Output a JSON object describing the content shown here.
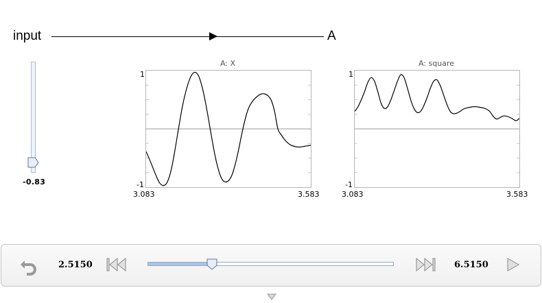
{
  "network": {
    "input_node": "input",
    "output_node": "A"
  },
  "slider": {
    "value": "-0.83",
    "level_fraction": 0.085
  },
  "plots": [
    {
      "title": "A: X",
      "ymax_label": "1",
      "ymin_label": "-1",
      "xmin_label": "3.083",
      "xmax_label": "3.583",
      "series": {
        "x": [
          3.083,
          3.093,
          3.103,
          3.113,
          3.123,
          3.133,
          3.143,
          3.153,
          3.163,
          3.173,
          3.183,
          3.193,
          3.203,
          3.213,
          3.223,
          3.233,
          3.243,
          3.253,
          3.263,
          3.273,
          3.283,
          3.293,
          3.303,
          3.313,
          3.323,
          3.333,
          3.343,
          3.353,
          3.363,
          3.373,
          3.383,
          3.393,
          3.403,
          3.413,
          3.423,
          3.433,
          3.443,
          3.453,
          3.463,
          3.473,
          3.483,
          3.493,
          3.503,
          3.513,
          3.523,
          3.533,
          3.543,
          3.553,
          3.563,
          3.573,
          3.583
        ],
        "y": [
          -0.39,
          -0.52,
          -0.66,
          -0.8,
          -0.92,
          -0.97,
          -0.95,
          -0.83,
          -0.6,
          -0.28,
          0.06,
          0.38,
          0.63,
          0.82,
          0.94,
          0.97,
          0.9,
          0.72,
          0.46,
          0.15,
          -0.18,
          -0.48,
          -0.71,
          -0.86,
          -0.91,
          -0.89,
          -0.8,
          -0.62,
          -0.38,
          -0.1,
          0.15,
          0.34,
          0.45,
          0.52,
          0.57,
          0.6,
          0.6,
          0.57,
          0.49,
          0.3,
          0.0,
          -0.1,
          -0.18,
          -0.24,
          -0.28,
          -0.3,
          -0.31,
          -0.31,
          -0.3,
          -0.29,
          -0.28
        ]
      }
    },
    {
      "title": "A: square",
      "ymax_label": "1",
      "ymin_label": "-1",
      "xmin_label": "3.083",
      "xmax_label": "3.583",
      "series": {
        "x": [
          3.083,
          3.093,
          3.103,
          3.113,
          3.123,
          3.133,
          3.143,
          3.153,
          3.163,
          3.173,
          3.183,
          3.193,
          3.203,
          3.213,
          3.223,
          3.233,
          3.243,
          3.253,
          3.263,
          3.273,
          3.283,
          3.293,
          3.303,
          3.313,
          3.323,
          3.333,
          3.343,
          3.353,
          3.363,
          3.373,
          3.383,
          3.393,
          3.403,
          3.413,
          3.423,
          3.433,
          3.443,
          3.453,
          3.463,
          3.473,
          3.483,
          3.493,
          3.503,
          3.513,
          3.523,
          3.533,
          3.543,
          3.553,
          3.563,
          3.573,
          3.583
        ],
        "y": [
          0.3,
          0.38,
          0.5,
          0.64,
          0.8,
          0.88,
          0.82,
          0.64,
          0.44,
          0.35,
          0.38,
          0.5,
          0.66,
          0.82,
          0.93,
          0.88,
          0.7,
          0.5,
          0.35,
          0.28,
          0.3,
          0.4,
          0.54,
          0.7,
          0.82,
          0.84,
          0.74,
          0.58,
          0.42,
          0.3,
          0.26,
          0.27,
          0.3,
          0.34,
          0.36,
          0.37,
          0.38,
          0.38,
          0.37,
          0.36,
          0.34,
          0.3,
          0.22,
          0.17,
          0.19,
          0.22,
          0.22,
          0.2,
          0.17,
          0.14,
          0.18
        ]
      }
    }
  ],
  "playback": {
    "start_time": "2.5150",
    "end_time": "6.5150",
    "position_fraction": 0.26
  },
  "icons": {
    "undo": "undo-icon",
    "skip_back": "skip-back-icon",
    "skip_forward": "skip-forward-icon",
    "play": "play-icon",
    "collapse": "collapse-arrow-icon"
  }
}
